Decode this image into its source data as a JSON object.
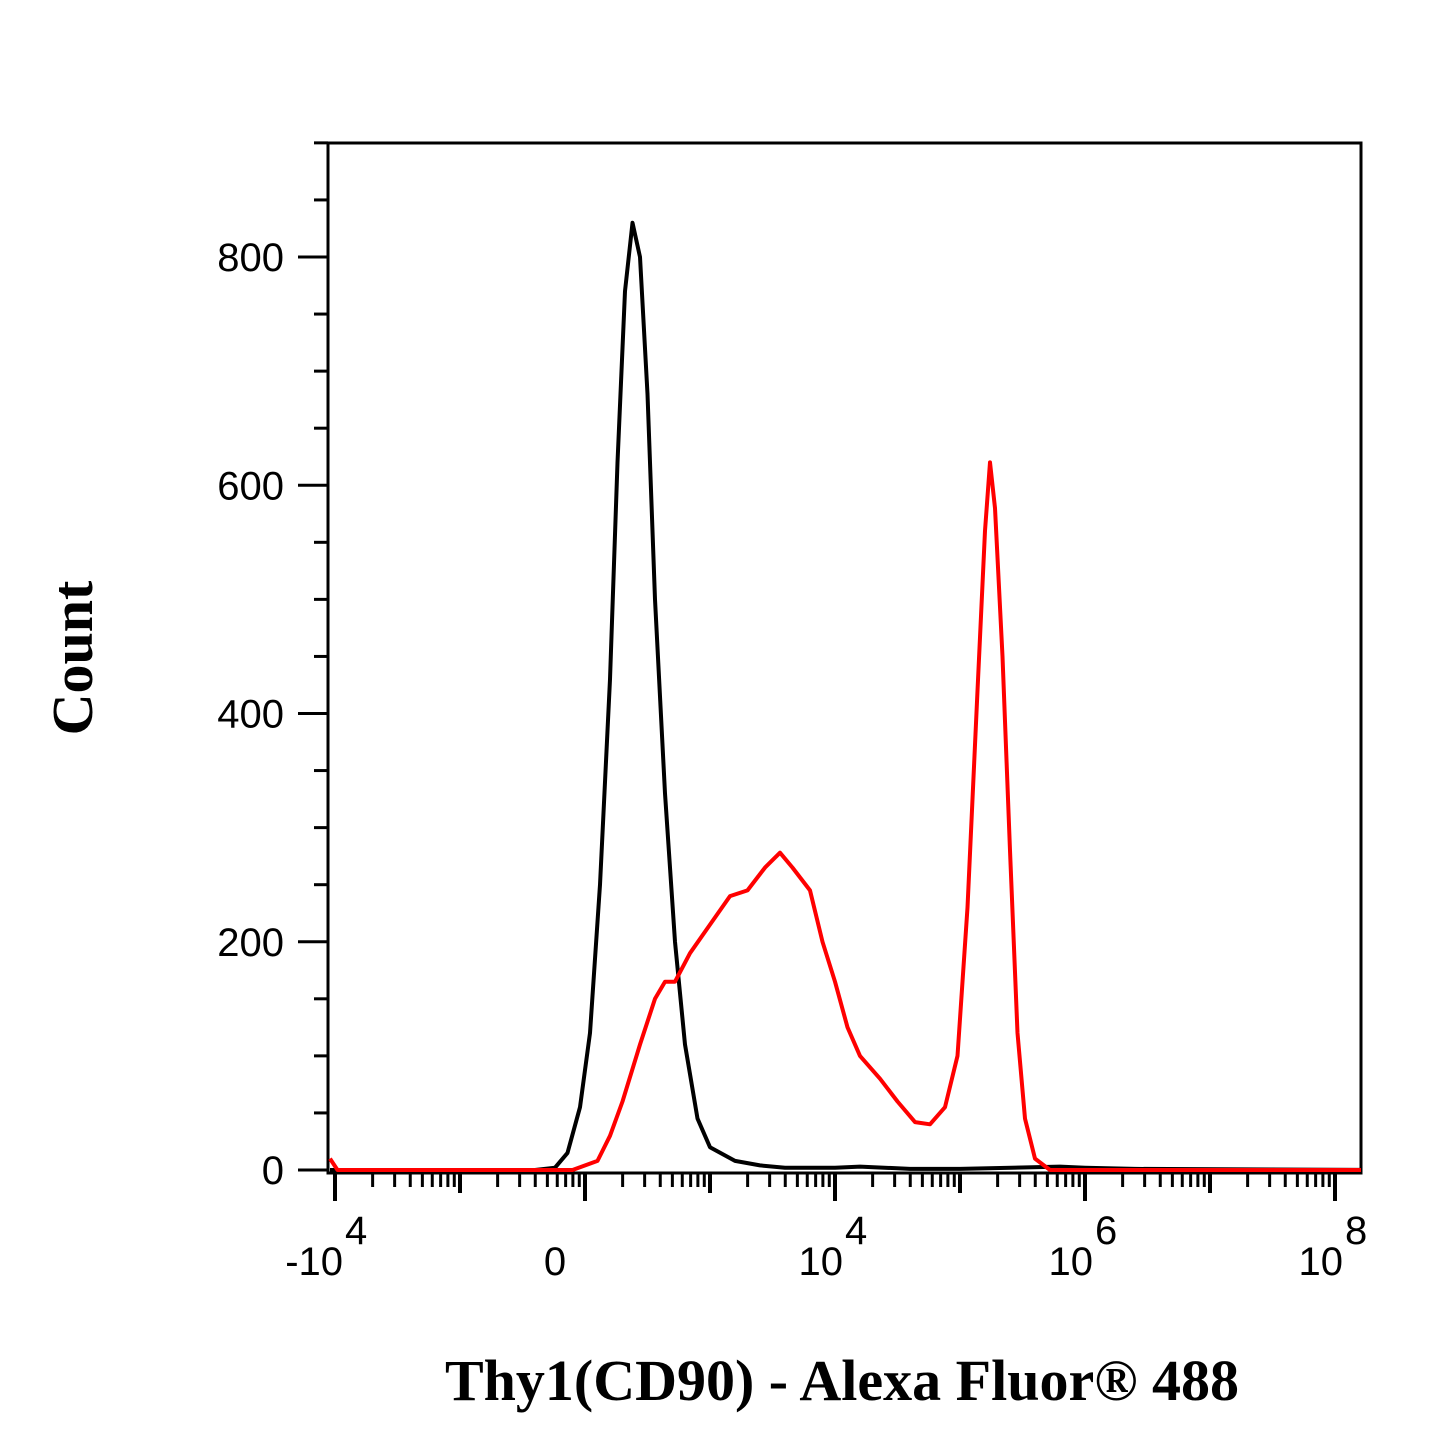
{
  "chart_data": {
    "type": "line",
    "title": "",
    "xlabel": "Thy1(CD90) - Alexa Fluor® 488",
    "ylabel": "Count",
    "xscale": "biexponential",
    "ylim": [
      0,
      900
    ],
    "y_ticks": [
      {
        "value": 0,
        "label": "0"
      },
      {
        "value": 200,
        "label": "200"
      },
      {
        "value": 400,
        "label": "400"
      },
      {
        "value": 600,
        "label": "600"
      },
      {
        "value": 800,
        "label": "800"
      }
    ],
    "x_ticks": [
      {
        "pos": 0,
        "base": "-10",
        "exp": "4"
      },
      {
        "pos": 1,
        "base": "0",
        "exp": ""
      },
      {
        "pos": 2,
        "base": "10",
        "exp": "4"
      },
      {
        "pos": 3,
        "base": "10",
        "exp": "6"
      },
      {
        "pos": 4,
        "base": "10",
        "exp": "8"
      }
    ],
    "series": [
      {
        "color": "#000000",
        "points": [
          [
            -0.02,
            0
          ],
          [
            0.8,
            0
          ],
          [
            0.88,
            2
          ],
          [
            0.93,
            15
          ],
          [
            0.98,
            55
          ],
          [
            1.02,
            120
          ],
          [
            1.06,
            250
          ],
          [
            1.1,
            430
          ],
          [
            1.13,
            620
          ],
          [
            1.16,
            770
          ],
          [
            1.19,
            830
          ],
          [
            1.22,
            800
          ],
          [
            1.25,
            680
          ],
          [
            1.28,
            500
          ],
          [
            1.32,
            330
          ],
          [
            1.36,
            200
          ],
          [
            1.4,
            110
          ],
          [
            1.45,
            45
          ],
          [
            1.5,
            20
          ],
          [
            1.6,
            8
          ],
          [
            1.7,
            4
          ],
          [
            1.8,
            2
          ],
          [
            2.0,
            2
          ],
          [
            2.1,
            3
          ],
          [
            2.3,
            1
          ],
          [
            2.5,
            1
          ],
          [
            2.9,
            3
          ],
          [
            3.0,
            2
          ],
          [
            3.2,
            1
          ],
          [
            4.2,
            0
          ]
        ]
      },
      {
        "color": "#ff0000",
        "points": [
          [
            -0.02,
            10
          ],
          [
            0.01,
            0
          ],
          [
            0.95,
            0
          ],
          [
            1.05,
            8
          ],
          [
            1.1,
            30
          ],
          [
            1.15,
            60
          ],
          [
            1.22,
            110
          ],
          [
            1.28,
            150
          ],
          [
            1.32,
            165
          ],
          [
            1.36,
            165
          ],
          [
            1.42,
            190
          ],
          [
            1.5,
            215
          ],
          [
            1.58,
            240
          ],
          [
            1.65,
            245
          ],
          [
            1.72,
            265
          ],
          [
            1.78,
            278
          ],
          [
            1.83,
            265
          ],
          [
            1.9,
            245
          ],
          [
            1.95,
            200
          ],
          [
            2.0,
            165
          ],
          [
            2.05,
            125
          ],
          [
            2.1,
            100
          ],
          [
            2.18,
            80
          ],
          [
            2.25,
            60
          ],
          [
            2.32,
            42
          ],
          [
            2.38,
            40
          ],
          [
            2.44,
            55
          ],
          [
            2.49,
            100
          ],
          [
            2.53,
            230
          ],
          [
            2.57,
            420
          ],
          [
            2.6,
            560
          ],
          [
            2.62,
            620
          ],
          [
            2.64,
            580
          ],
          [
            2.67,
            450
          ],
          [
            2.7,
            280
          ],
          [
            2.73,
            120
          ],
          [
            2.76,
            45
          ],
          [
            2.8,
            10
          ],
          [
            2.86,
            0
          ],
          [
            4.2,
            0
          ]
        ]
      }
    ]
  }
}
